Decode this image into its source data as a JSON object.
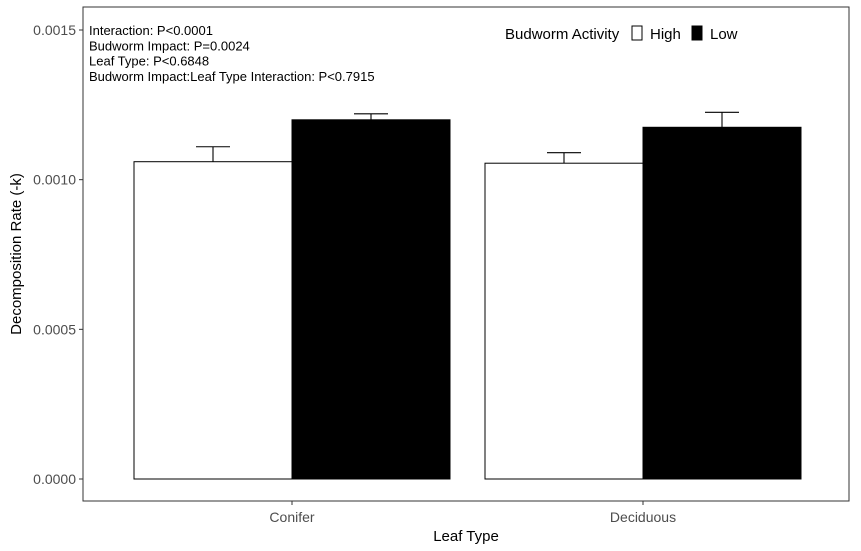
{
  "chart_data": {
    "type": "bar",
    "categories": [
      "Conifer",
      "Deciduous"
    ],
    "series": [
      {
        "name": "High",
        "values": [
          0.00106,
          0.001055
        ],
        "errors": [
          5e-05,
          3.5e-05
        ],
        "color": "#ffffff"
      },
      {
        "name": "Low",
        "values": [
          0.0012,
          0.001175
        ],
        "errors": [
          2e-05,
          5e-05
        ],
        "color": "#000000"
      }
    ],
    "xlabel": "Leaf Type",
    "ylabel": "Decomposition Rate (-k)",
    "ylim": [
      0,
      0.0015
    ],
    "yticks": [
      "0.0000",
      "0.0005",
      "0.0010",
      "0.0015"
    ],
    "ytick_values": [
      0,
      0.0005,
      0.001,
      0.0015
    ],
    "grid": false,
    "legend": {
      "title": "Budworm Activity",
      "placement": "top-right",
      "entries": [
        "High",
        "Low"
      ]
    },
    "annotations": [
      "Interaction: P<0.0001",
      "Budworm Impact: P=0.0024",
      "Leaf Type: P<0.6848",
      "Budworm Impact:Leaf Type Interaction: P<0.7915"
    ]
  }
}
